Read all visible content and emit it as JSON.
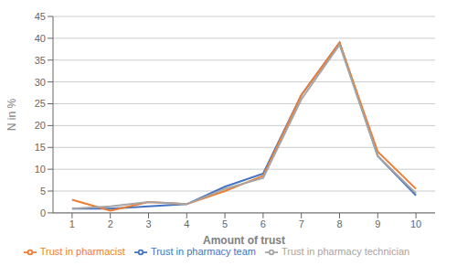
{
  "chart_data": {
    "type": "line",
    "x": [
      1,
      2,
      3,
      4,
      5,
      6,
      7,
      8,
      9,
      10
    ],
    "series": [
      {
        "name": "Trust in pharmacy team",
        "color": "#4472c4",
        "values": [
          1.0,
          1.0,
          1.5,
          2.0,
          6.0,
          9.0,
          27.0,
          39.0,
          13.0,
          4.0
        ]
      },
      {
        "name": "Trust in pharmacist",
        "color": "#ed7d31",
        "values": [
          3.0,
          0.5,
          2.5,
          2.0,
          5.0,
          8.5,
          27.0,
          39.0,
          14.0,
          5.5
        ]
      },
      {
        "name": "Trust in pharmacy technician",
        "color": "#a5a5a5",
        "values": [
          1.0,
          1.5,
          2.5,
          2.0,
          5.5,
          8.0,
          26.0,
          38.5,
          13.0,
          4.5
        ]
      }
    ],
    "xlabel": "Amount of trust",
    "ylabel": "N in %",
    "xlim": [
      0.5,
      10.5
    ],
    "xticks": [
      1,
      2,
      3,
      4,
      5,
      6,
      7,
      8,
      9,
      10
    ],
    "ylim": [
      0,
      45
    ],
    "yticks": [
      0,
      5,
      10,
      15,
      20,
      25,
      30,
      35,
      40,
      45
    ],
    "grid": true,
    "legend": "bottom"
  }
}
